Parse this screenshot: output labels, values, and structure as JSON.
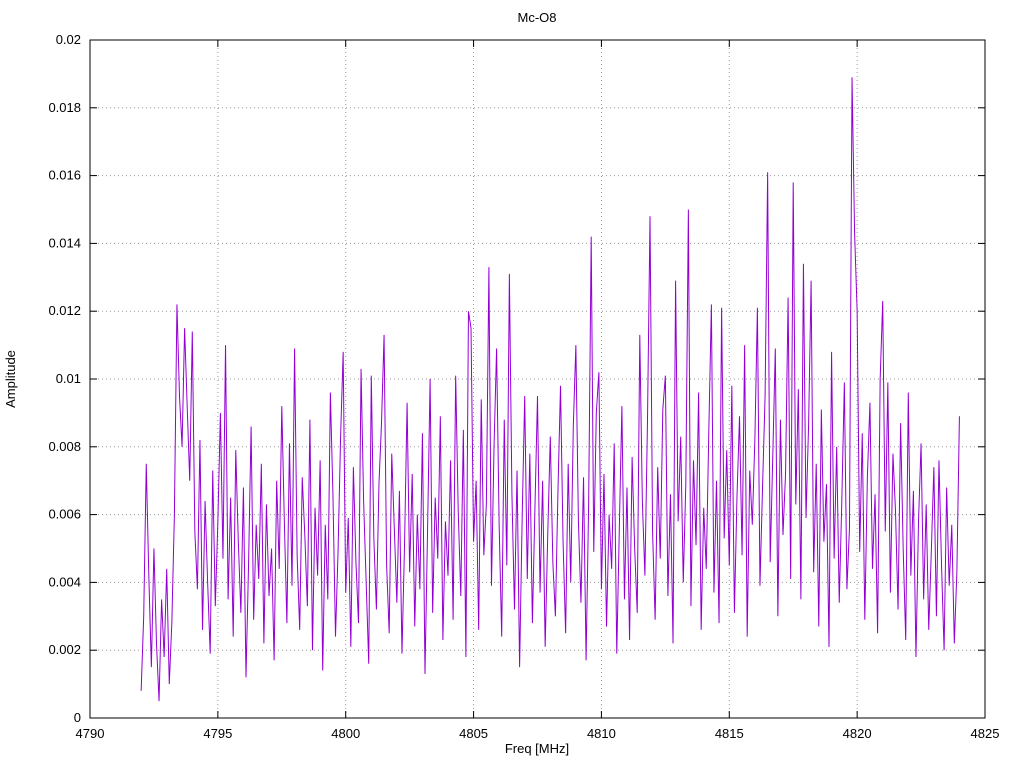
{
  "chart_data": {
    "type": "line",
    "title": "Mc-O8",
    "xlabel": "Freq [MHz]",
    "ylabel": "Amplitude",
    "xlim": [
      4790,
      4825
    ],
    "ylim": [
      0,
      0.02
    ],
    "x_ticks": [
      4790,
      4795,
      4800,
      4805,
      4810,
      4815,
      4820,
      4825
    ],
    "y_ticks": [
      0,
      0.002,
      0.004,
      0.006,
      0.008,
      0.01,
      0.012,
      0.014,
      0.016,
      0.018,
      0.02
    ],
    "y_tick_labels": [
      "0",
      "0.002",
      "0.004",
      "0.006",
      "0.008",
      "0.01",
      "0.012",
      "0.014",
      "0.016",
      "0.018",
      "0.02"
    ],
    "grid": true,
    "grid_style": "dotted",
    "legend": "none",
    "line_color": "#9400d3",
    "border_color": "#000000",
    "grid_color": "#999999",
    "series": [
      {
        "name": "Mc-O8",
        "x_start": 4792.0,
        "x_step": 0.1,
        "values_scale": 0.0001,
        "values": [
          8,
          30,
          75,
          42,
          15,
          50,
          22,
          5,
          35,
          18,
          44,
          10,
          28,
          60,
          122,
          95,
          80,
          115,
          92,
          70,
          114,
          55,
          38,
          82,
          26,
          64,
          40,
          19,
          73,
          33,
          58,
          90,
          47,
          110,
          35,
          65,
          24,
          79,
          52,
          31,
          68,
          12,
          45,
          86,
          29,
          57,
          41,
          75,
          22,
          63,
          36,
          50,
          17,
          70,
          44,
          92,
          58,
          28,
          81,
          39,
          109,
          48,
          26,
          71,
          54,
          33,
          88,
          20,
          62,
          42,
          76,
          14,
          57,
          35,
          96,
          66,
          24,
          49,
          83,
          108,
          37,
          59,
          21,
          74,
          46,
          28,
          103,
          64,
          40,
          16,
          101,
          53,
          32,
          69,
          87,
          113,
          45,
          25,
          78,
          56,
          34,
          67,
          19,
          51,
          93,
          43,
          72,
          27,
          60,
          38,
          84,
          13,
          55,
          100,
          31,
          65,
          47,
          89,
          23,
          58,
          42,
          76,
          29,
          101,
          61,
          36,
          85,
          18,
          120,
          115,
          52,
          70,
          26,
          94,
          48,
          63,
          133,
          39,
          80,
          109,
          57,
          24,
          88,
          45,
          131,
          66,
          32,
          73,
          15,
          59,
          95,
          41,
          78,
          28,
          62,
          95,
          37,
          70,
          21,
          54,
          83,
          46,
          30,
          67,
          98,
          52,
          25,
          75,
          40,
          86,
          110,
          58,
          34,
          71,
          17,
          63,
          142,
          49,
          90,
          102,
          38,
          72,
          27,
          60,
          44,
          81,
          19,
          56,
          92,
          35,
          68,
          23,
          77,
          50,
          31,
          113,
          64,
          42,
          87,
          148,
          55,
          29,
          74,
          47,
          91,
          101,
          36,
          66,
          22,
          129,
          58,
          83,
          40,
          69,
          150,
          33,
          76,
          51,
          96,
          26,
          62,
          44,
          85,
          122,
          37,
          70,
          28,
          121,
          53,
          79,
          45,
          98,
          31,
          65,
          89,
          48,
          110,
          24,
          73,
          57,
          82,
          121,
          39,
          68,
          95,
          161,
          46,
          77,
          109,
          30,
          88,
          54,
          72,
          124,
          41,
          158,
          63,
          97,
          35,
          134,
          59,
          86,
          129,
          43,
          75,
          27,
          91,
          52,
          69,
          21,
          108,
          47,
          80,
          34,
          64,
          99,
          38,
          56,
          189,
          143,
          120,
          49,
          84,
          29,
          71,
          93,
          44,
          66,
          25,
          100,
          123,
          55,
          99,
          37,
          78,
          61,
          32,
          87,
          50,
          23,
          96,
          42,
          67,
          18,
          58,
          81,
          35,
          63,
          26,
          49,
          74,
          30,
          76,
          45,
          20,
          68,
          39,
          57,
          22,
          43,
          89
        ]
      }
    ]
  }
}
